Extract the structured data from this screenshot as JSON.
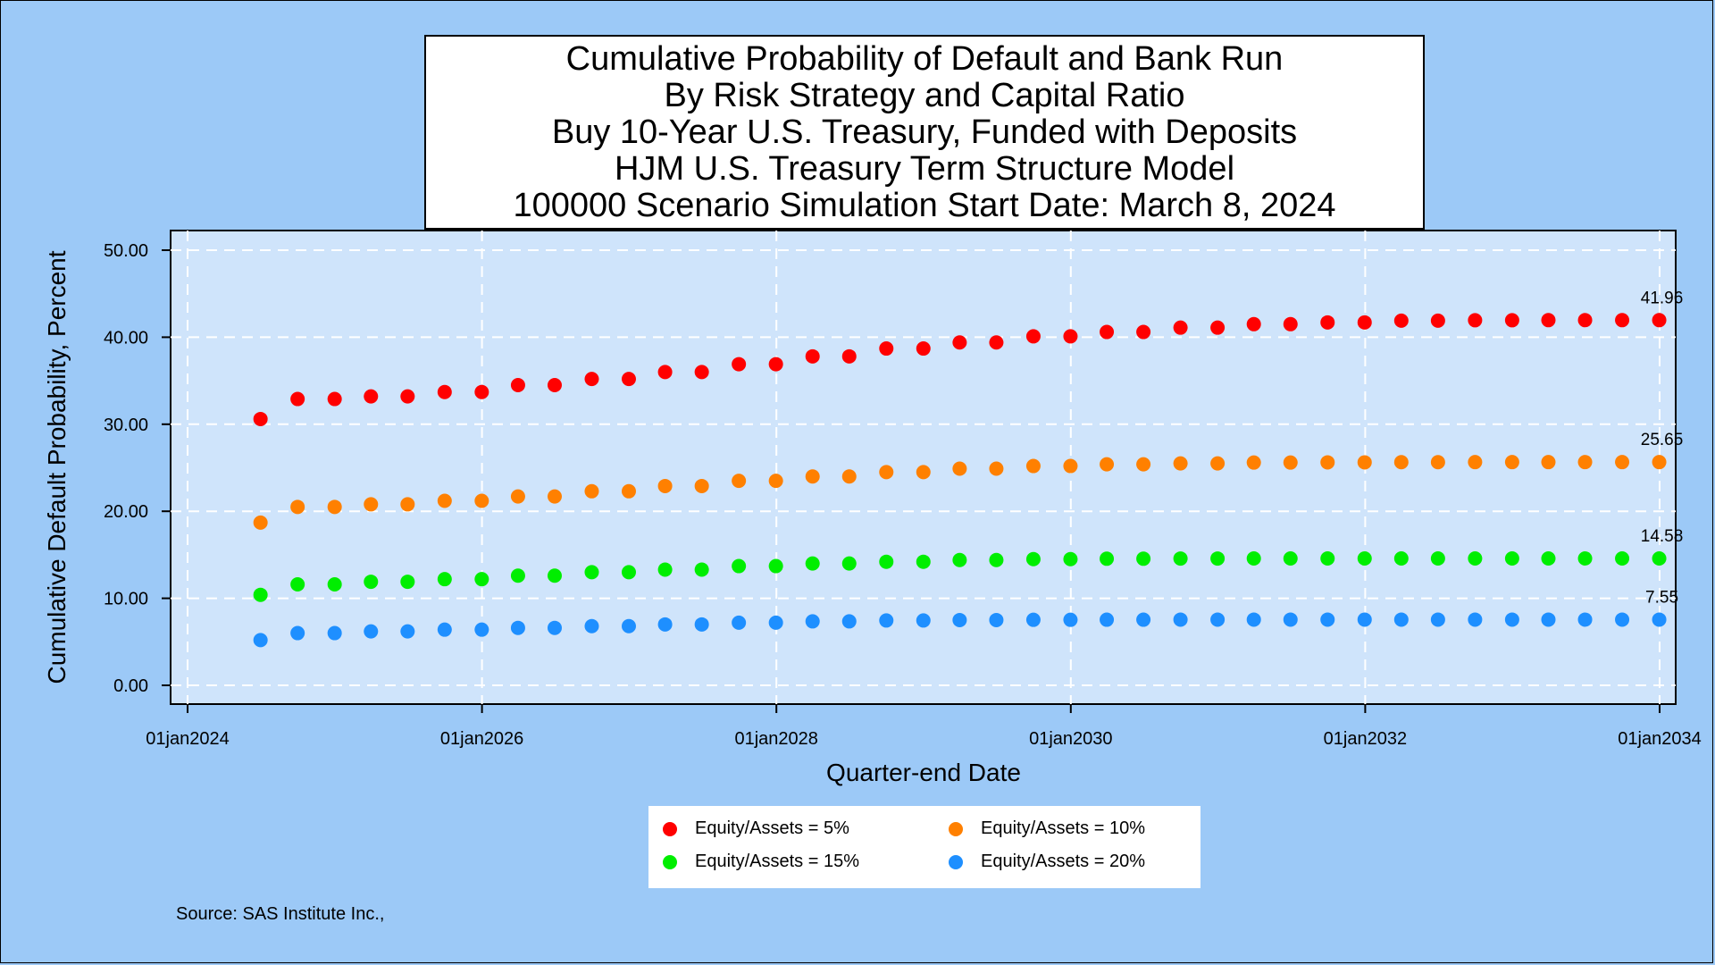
{
  "title_lines": [
    "Cumulative Probability of Default and Bank Run",
    "By Risk Strategy and Capital Ratio",
    "Buy 10-Year U.S. Treasury, Funded with Deposits",
    "HJM U.S. Treasury Term Structure Model",
    "100000 Scenario Simulation Start Date: March 8, 2024"
  ],
  "source": "Source: SAS Institute Inc.,",
  "chart_data": {
    "type": "scatter",
    "xlabel": "Quarter-end Date",
    "ylabel": "Cumulative Default Probability, Percent",
    "xlim": [
      "2024-01-01",
      "2034-01-01"
    ],
    "ylim": [
      0,
      50
    ],
    "x_ticks": [
      "01jan2024",
      "01jan2026",
      "01jan2028",
      "01jan2030",
      "01jan2032",
      "01jan2034"
    ],
    "y_ticks": [
      "0.00",
      "10.00",
      "20.00",
      "30.00",
      "40.00",
      "50.00"
    ],
    "grid": true,
    "legend_position": "bottom",
    "x": [
      "2024-06-30",
      "2024-09-30",
      "2024-12-31",
      "2025-03-31",
      "2025-06-30",
      "2025-09-30",
      "2025-12-31",
      "2026-03-31",
      "2026-06-30",
      "2026-09-30",
      "2026-12-31",
      "2027-03-31",
      "2027-06-30",
      "2027-09-30",
      "2027-12-31",
      "2028-03-31",
      "2028-06-30",
      "2028-09-30",
      "2028-12-31",
      "2029-03-31",
      "2029-06-30",
      "2029-09-30",
      "2029-12-31",
      "2030-03-31",
      "2030-06-30",
      "2030-09-30",
      "2030-12-31",
      "2031-03-31",
      "2031-06-30",
      "2031-09-30",
      "2031-12-31",
      "2032-03-31",
      "2032-06-30",
      "2032-09-30",
      "2032-12-31",
      "2033-03-31",
      "2033-06-30",
      "2033-09-30",
      "2033-12-31"
    ],
    "series": [
      {
        "name": "Equity/Assets = 5%",
        "color": "#ff0000",
        "end_label": "41.96",
        "values": [
          30.6,
          32.9,
          32.9,
          33.2,
          33.2,
          33.7,
          33.7,
          34.5,
          34.5,
          35.2,
          35.2,
          36.0,
          36.0,
          36.9,
          36.9,
          37.8,
          37.8,
          38.7,
          38.7,
          39.4,
          39.4,
          40.1,
          40.1,
          40.6,
          40.6,
          41.1,
          41.1,
          41.5,
          41.5,
          41.7,
          41.7,
          41.9,
          41.9,
          41.95,
          41.95,
          41.96,
          41.96,
          41.96,
          41.96
        ]
      },
      {
        "name": "Equity/Assets = 10%",
        "color": "#ff8000",
        "end_label": "25.65",
        "values": [
          18.7,
          20.5,
          20.5,
          20.8,
          20.8,
          21.2,
          21.2,
          21.7,
          21.7,
          22.3,
          22.3,
          22.9,
          22.9,
          23.5,
          23.5,
          24.0,
          24.0,
          24.5,
          24.5,
          24.9,
          24.9,
          25.2,
          25.2,
          25.4,
          25.4,
          25.5,
          25.5,
          25.6,
          25.6,
          25.62,
          25.62,
          25.64,
          25.64,
          25.65,
          25.65,
          25.65,
          25.65,
          25.65,
          25.65
        ]
      },
      {
        "name": "Equity/Assets = 15%",
        "color": "#00ee00",
        "end_label": "14.58",
        "values": [
          10.4,
          11.6,
          11.6,
          11.9,
          11.9,
          12.2,
          12.2,
          12.6,
          12.6,
          13.0,
          13.0,
          13.3,
          13.3,
          13.7,
          13.7,
          14.0,
          14.0,
          14.2,
          14.2,
          14.4,
          14.4,
          14.5,
          14.5,
          14.55,
          14.55,
          14.57,
          14.57,
          14.58,
          14.58,
          14.58,
          14.58,
          14.58,
          14.58,
          14.58,
          14.58,
          14.58,
          14.58,
          14.58,
          14.58
        ]
      },
      {
        "name": "Equity/Assets = 20%",
        "color": "#1e8fff",
        "end_label": "7.55",
        "values": [
          5.2,
          6.0,
          6.0,
          6.2,
          6.2,
          6.4,
          6.4,
          6.6,
          6.6,
          6.8,
          6.8,
          7.0,
          7.0,
          7.2,
          7.2,
          7.35,
          7.35,
          7.45,
          7.45,
          7.5,
          7.5,
          7.53,
          7.53,
          7.54,
          7.54,
          7.55,
          7.55,
          7.55,
          7.55,
          7.55,
          7.55,
          7.55,
          7.55,
          7.55,
          7.55,
          7.55,
          7.55,
          7.55,
          7.55
        ]
      }
    ]
  }
}
